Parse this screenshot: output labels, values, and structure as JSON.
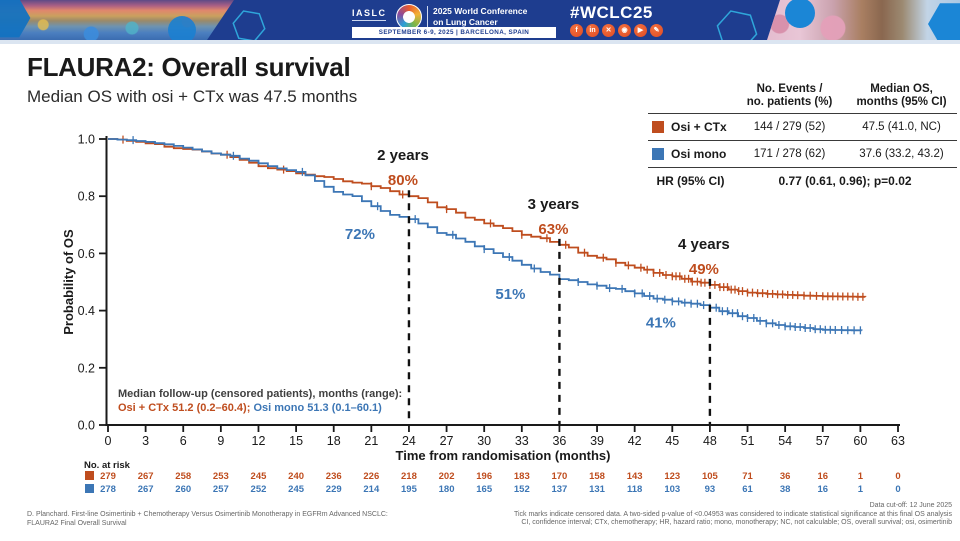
{
  "header": {
    "iaslc_label": "IASLC",
    "conference_title_line1": "2025 World Conference",
    "conference_title_line2": "on Lung Cancer",
    "date_location": "SEPTEMBER 6-9, 2025  |  BARCELONA, SPAIN",
    "hashtag": "#WCLC25",
    "social": [
      {
        "name": "facebook",
        "glyph": "f"
      },
      {
        "name": "linkedin",
        "glyph": "in"
      },
      {
        "name": "x",
        "glyph": "✕"
      },
      {
        "name": "instagram",
        "glyph": "◉"
      },
      {
        "name": "youtube",
        "glyph": "▶"
      },
      {
        "name": "brush",
        "glyph": "✎"
      }
    ]
  },
  "slide": {
    "title": "FLAURA2: Overall survival",
    "subtitle": "Median OS with osi + CTx was 47.5 months"
  },
  "summary_table": {
    "events_header": [
      "No. Events /",
      "no. patients (%)"
    ],
    "median_header": [
      "Median OS,",
      "months (95% CI)"
    ],
    "rows": [
      {
        "name": "Osi + CTx",
        "color": "#bf4d1e",
        "events": "144 / 279 (52)",
        "median": "47.5 (41.0, NC)"
      },
      {
        "name": "Osi mono",
        "color": "#3c76b5",
        "events": "171 / 278 (62)",
        "median": "37.6 (33.2, 43.2)"
      }
    ],
    "hr_label": "HR (95% CI)",
    "hr_value": "0.77 (0.61, 0.96); p=0.02"
  },
  "chart_data": {
    "type": "line",
    "subtype": "kaplan-meier",
    "xlabel": "Time from randomisation (months)",
    "ylabel": "Probability of OS",
    "xlim": [
      0,
      63
    ],
    "ylim": [
      0,
      1.0
    ],
    "xticks": [
      0,
      3,
      6,
      9,
      12,
      15,
      18,
      21,
      24,
      27,
      30,
      33,
      36,
      39,
      42,
      45,
      48,
      51,
      54,
      57,
      60,
      63
    ],
    "yticks": [
      "0.0",
      "0.2",
      "0.4",
      "0.6",
      "0.8",
      "1.0"
    ],
    "series": [
      {
        "name": "Osi + CTx",
        "color": "#bf4d1e",
        "anchors": [
          [
            0,
            1.0
          ],
          [
            3,
            0.985
          ],
          [
            6,
            0.965
          ],
          [
            9,
            0.945
          ],
          [
            12,
            0.905
          ],
          [
            15,
            0.88
          ],
          [
            18,
            0.86
          ],
          [
            21,
            0.835
          ],
          [
            24,
            0.8
          ],
          [
            27,
            0.755
          ],
          [
            30,
            0.705
          ],
          [
            33,
            0.665
          ],
          [
            36,
            0.63
          ],
          [
            39,
            0.585
          ],
          [
            42,
            0.55
          ],
          [
            45,
            0.52
          ],
          [
            48,
            0.49
          ],
          [
            51,
            0.463
          ],
          [
            54,
            0.455
          ],
          [
            57,
            0.45
          ],
          [
            60.4,
            0.448
          ]
        ],
        "censor_times": [
          1.2,
          9.5,
          14,
          21,
          23.5,
          27,
          30.5,
          33,
          35,
          36.5,
          38,
          39.5,
          40.5,
          41.5,
          42.5,
          43,
          43.5,
          44,
          44.5,
          45,
          45.3,
          45.6,
          46,
          46.3,
          46.6,
          47,
          47.3,
          47.6,
          48,
          48.4,
          48.8,
          49.1,
          49.4,
          49.7,
          50,
          50.3,
          50.6,
          51,
          51.4,
          51.8,
          52.2,
          52.6,
          53,
          53.4,
          53.8,
          54.2,
          54.6,
          55,
          55.5,
          56,
          56.5,
          57,
          57.4,
          57.8,
          58.2,
          58.6,
          59,
          59.4,
          59.8,
          60.2
        ]
      },
      {
        "name": "Osi mono",
        "color": "#3c76b5",
        "anchors": [
          [
            0,
            1.0
          ],
          [
            3,
            0.99
          ],
          [
            6,
            0.97
          ],
          [
            9,
            0.945
          ],
          [
            12,
            0.915
          ],
          [
            15,
            0.885
          ],
          [
            18,
            0.815
          ],
          [
            21,
            0.765
          ],
          [
            24,
            0.72
          ],
          [
            27,
            0.665
          ],
          [
            30,
            0.615
          ],
          [
            33,
            0.56
          ],
          [
            36,
            0.51
          ],
          [
            39,
            0.487
          ],
          [
            42,
            0.46
          ],
          [
            45,
            0.432
          ],
          [
            48,
            0.41
          ],
          [
            51,
            0.374
          ],
          [
            54,
            0.345
          ],
          [
            57,
            0.333
          ],
          [
            60.1,
            0.33
          ]
        ],
        "censor_times": [
          2,
          10,
          15.5,
          21.5,
          24.5,
          27.5,
          30,
          32,
          34,
          36,
          37.5,
          39,
          40,
          41,
          42,
          42.6,
          43.2,
          43.8,
          44.4,
          45,
          45.5,
          46,
          46.5,
          47,
          47.5,
          48,
          48.5,
          49,
          49.4,
          49.8,
          50.2,
          50.6,
          51,
          51.5,
          52,
          52.5,
          53,
          53.5,
          54,
          54.4,
          54.8,
          55.2,
          55.6,
          56,
          56.4,
          56.8,
          57.2,
          57.6,
          58,
          58.5,
          59,
          59.5,
          60
        ]
      }
    ],
    "milestones": [
      {
        "label": "2 years",
        "t": 24,
        "values": [
          "80%",
          "72%"
        ]
      },
      {
        "label": "3 years",
        "t": 36,
        "values": [
          "63%",
          "51%"
        ]
      },
      {
        "label": "4 years",
        "t": 48,
        "values": [
          "49%",
          "41%"
        ]
      }
    ],
    "at_risk": {
      "label": "No. at risk",
      "times": [
        0,
        3,
        6,
        9,
        12,
        15,
        18,
        21,
        24,
        27,
        30,
        33,
        36,
        39,
        42,
        45,
        48,
        51,
        54,
        57,
        60,
        63
      ],
      "rows": [
        [
          279,
          267,
          258,
          253,
          245,
          240,
          236,
          226,
          218,
          202,
          196,
          183,
          170,
          158,
          143,
          123,
          105,
          71,
          36,
          16,
          1,
          0
        ],
        [
          278,
          267,
          260,
          257,
          252,
          245,
          229,
          214,
          195,
          180,
          165,
          152,
          137,
          131,
          118,
          103,
          93,
          61,
          38,
          16,
          1,
          0
        ]
      ]
    },
    "median_followup": {
      "heading": "Median follow-up (censored patients), months (range):",
      "osi_ctx": "Osi + CTx 51.2 (0.2–60.4);",
      "osi_mono": " Osi mono 51.3 (0.1–60.1)"
    }
  },
  "footer": {
    "left_line1": "D. Planchard. First-line Osimertinib + Chemotherapy Versus Osimertinib Monotherapy in EGFRm Advanced NSCLC:",
    "left_line2": "FLAURA2 Final Overall Survival",
    "right_line1": "Data cut-off: 12 June 2025",
    "right_line2": "Tick marks indicate censored data. A two-sided p-value of <0.04953 was considered to indicate statistical significance at this final OS analysis",
    "right_line3": "CI, confidence interval; CTx, chemotherapy; HR, hazard ratio; mono, monotherapy; NC, not calculable; OS, overall survival; osi, osimertinib"
  }
}
